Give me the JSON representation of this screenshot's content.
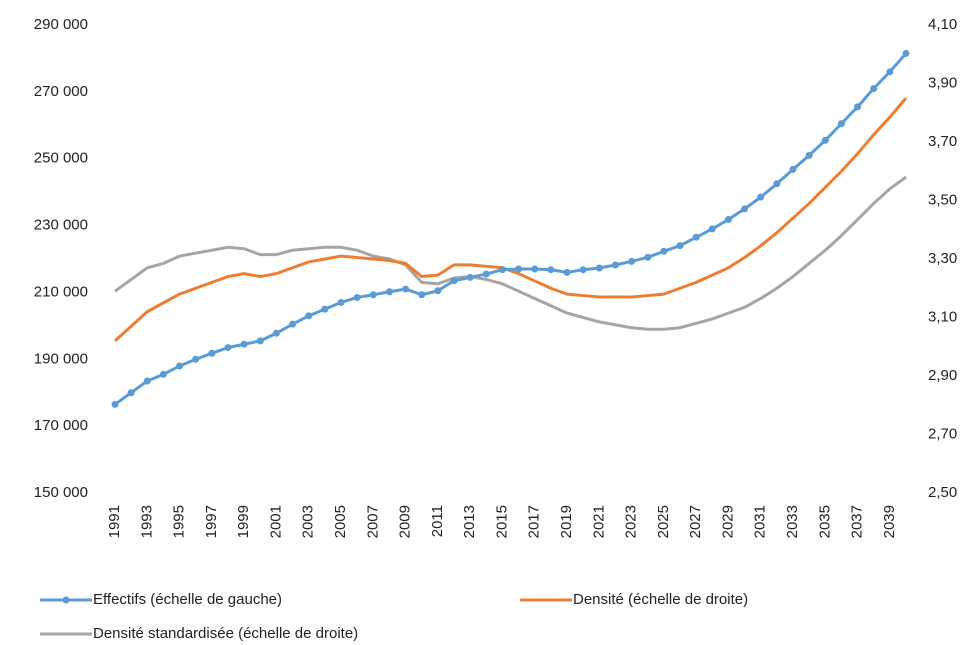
{
  "chart_data": {
    "type": "line",
    "categories": [
      "1991",
      null,
      "1993",
      null,
      "1995",
      null,
      "1997",
      null,
      "1999",
      null,
      "2001",
      null,
      "2003",
      null,
      "2005",
      null,
      "2007",
      null,
      "2009",
      null,
      "2011",
      null,
      "2013",
      null,
      "2015",
      null,
      "2017",
      null,
      "2019",
      null,
      "2021",
      null,
      "2023",
      null,
      "2025",
      null,
      "2027",
      null,
      "2029",
      null,
      "2031",
      null,
      "2033",
      null,
      "2035",
      null,
      "2037",
      null,
      "2039",
      null
    ],
    "series": [
      {
        "name": "Effectifs (échelle de gauche)",
        "color": "#5b9bd5",
        "axis": "y",
        "values": [
          176500,
          180000,
          183500,
          185500,
          188000,
          190000,
          191800,
          193500,
          194500,
          195500,
          197800,
          200500,
          203000,
          205000,
          207000,
          208500,
          209300,
          210200,
          211000,
          209300,
          210500,
          213500,
          214500,
          215500,
          216800,
          217000,
          217000,
          216800,
          216000,
          216800,
          217300,
          218200,
          219300,
          220500,
          222300,
          224000,
          226500,
          229000,
          231800,
          235000,
          238500,
          242500,
          246800,
          251000,
          255500,
          260500,
          265500,
          271000,
          276000,
          281500
        ]
      },
      {
        "name": "Densité (échelle de droite)",
        "color": "#ed7d31",
        "axis": "y2",
        "values": [
          3.02,
          3.07,
          3.12,
          3.15,
          3.18,
          3.2,
          3.22,
          3.24,
          3.25,
          3.24,
          3.25,
          3.27,
          3.29,
          3.3,
          3.31,
          3.305,
          3.3,
          3.295,
          3.285,
          3.24,
          3.245,
          3.28,
          3.28,
          3.275,
          3.27,
          3.25,
          3.225,
          3.2,
          3.18,
          3.175,
          3.17,
          3.17,
          3.17,
          3.175,
          3.18,
          3.2,
          3.22,
          3.245,
          3.27,
          3.305,
          3.345,
          3.39,
          3.44,
          3.49,
          3.545,
          3.6,
          3.66,
          3.725,
          3.785,
          3.85
        ]
      },
      {
        "name": "Densité standardisée (échelle de droite)",
        "color": "#a5a5a5",
        "axis": "y2",
        "values": [
          3.19,
          3.23,
          3.27,
          3.285,
          3.31,
          3.32,
          3.33,
          3.34,
          3.335,
          3.315,
          3.315,
          3.33,
          3.335,
          3.34,
          3.34,
          3.33,
          3.31,
          3.3,
          3.28,
          3.22,
          3.215,
          3.235,
          3.24,
          3.23,
          3.215,
          3.19,
          3.165,
          3.14,
          3.115,
          3.1,
          3.085,
          3.075,
          3.065,
          3.06,
          3.06,
          3.065,
          3.08,
          3.095,
          3.115,
          3.135,
          3.165,
          3.2,
          3.24,
          3.285,
          3.33,
          3.38,
          3.435,
          3.49,
          3.54,
          3.58
        ]
      }
    ],
    "ylim": [
      150000,
      290000
    ],
    "yticks": [
      {
        "value": 150000,
        "label": "150 000"
      },
      {
        "value": 170000,
        "label": "170 000"
      },
      {
        "value": 190000,
        "label": "190 000"
      },
      {
        "value": 210000,
        "label": "210 000"
      },
      {
        "value": 230000,
        "label": "230 000"
      },
      {
        "value": 250000,
        "label": "250 000"
      },
      {
        "value": 270000,
        "label": "270 000"
      },
      {
        "value": 290000,
        "label": "290 000"
      }
    ],
    "y2lim": [
      2.5,
      4.1
    ],
    "y2ticks": [
      {
        "value": 2.5,
        "label": "2,50"
      },
      {
        "value": 2.7,
        "label": "2,70"
      },
      {
        "value": 2.9,
        "label": "2,90"
      },
      {
        "value": 3.1,
        "label": "3,10"
      },
      {
        "value": 3.3,
        "label": "3,30"
      },
      {
        "value": 3.5,
        "label": "3,50"
      },
      {
        "value": 3.7,
        "label": "3,70"
      },
      {
        "value": 3.9,
        "label": "3,90"
      },
      {
        "value": 4.1,
        "label": "4,10"
      }
    ],
    "legend": "bottom"
  }
}
